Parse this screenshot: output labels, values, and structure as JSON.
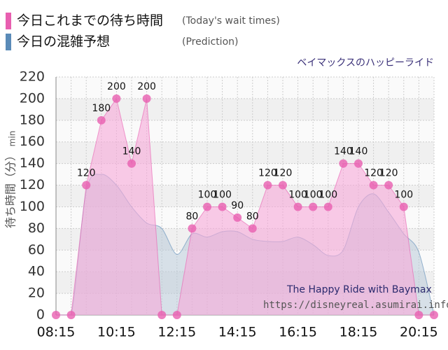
{
  "chart_data": {
    "type": "area",
    "subtitle": "ベイマックスのハッピーライド",
    "y_label": "待ち時間（分）",
    "y_unit": "min",
    "watermark": [
      "The Happy Ride with Baymax",
      "https://disneyreal.asumirai.info"
    ],
    "categories": [
      "08:15",
      null,
      null,
      null,
      "10:15",
      null,
      null,
      null,
      "12:15",
      null,
      null,
      null,
      "14:15",
      null,
      null,
      null,
      "16:15",
      null,
      null,
      null,
      "18:15",
      null,
      null,
      null,
      "20:15",
      null
    ],
    "series": [
      {
        "name": "今日の混雑予想",
        "name_en": "(Prediction)",
        "color": "#5a8bb8",
        "fill": "#b9cad8",
        "values": [
          0,
          0,
          115,
          130,
          120,
          100,
          85,
          80,
          56,
          75,
          72,
          77,
          77,
          70,
          68,
          68,
          72,
          65,
          55,
          60,
          100,
          112,
          95,
          75,
          58,
          0
        ]
      },
      {
        "name": "今日これまでの待ち時間",
        "name_en": "(Today's wait times)",
        "color": "#e85fb0",
        "fill": "#f7a8d8",
        "values": [
          0,
          0,
          120,
          180,
          200,
          140,
          200,
          0,
          0,
          80,
          100,
          100,
          90,
          80,
          120,
          120,
          100,
          100,
          100,
          140,
          140,
          120,
          120,
          100,
          0,
          0
        ],
        "labels": true
      }
    ],
    "ylim": [
      0,
      220
    ],
    "yticks": [
      0,
      20,
      40,
      60,
      80,
      100,
      120,
      140,
      160,
      180,
      200,
      220
    ],
    "grid": true
  }
}
